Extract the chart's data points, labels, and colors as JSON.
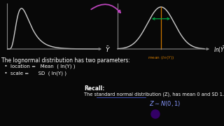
{
  "bg_color": "#080808",
  "text_color": "#ffffff",
  "title_text": "The lognormal distribution has two parameters:",
  "bullet1": "  •  location =   Mean  ( ln(Y) )",
  "bullet2": "  •  scale =      SD  ( ln(Y) )",
  "recall_title": "Recall:",
  "recall_body": "The standard normal distribution (Z), has mean 0 and SD 1.",
  "left_curve_color": "#cccccc",
  "right_curve_color": "#cccccc",
  "axis_color": "#888888",
  "arrow_color": "#bb44bb",
  "mean_bar_color": "#cc7700",
  "mean_bracket_color": "#00aa44",
  "mean_label": "mean (ln(Y))",
  "purple_dot_color": "#330066",
  "underline_color": "#4455cc",
  "math_color": "#8899ff",
  "left_yaxis_color": "#888888"
}
